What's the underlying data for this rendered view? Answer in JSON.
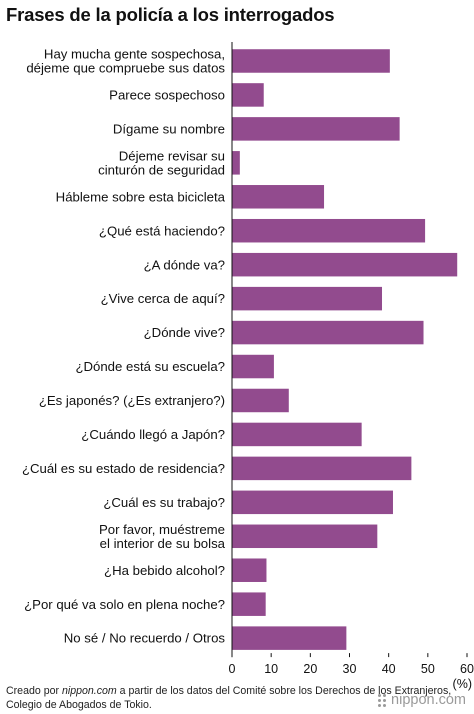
{
  "title": "Frases de la policía a los interrogados",
  "chart_data": {
    "type": "bar",
    "orientation": "horizontal",
    "categories": [
      [
        "Hay mucha gente sospechosa,",
        "déjeme que compruebe sus datos"
      ],
      [
        "Parece sospechoso"
      ],
      [
        "Dígame su nombre"
      ],
      [
        "Déjeme revisar su",
        "cinturón de seguridad"
      ],
      [
        "Hábleme sobre esta bicicleta"
      ],
      [
        "¿Qué está haciendo?"
      ],
      [
        "¿A dónde va?"
      ],
      [
        "¿Vive cerca de aquí?"
      ],
      [
        "¿Dónde vive?"
      ],
      [
        "¿Dónde está su escuela?"
      ],
      [
        "¿Es japonés? (¿Es extranjero?)"
      ],
      [
        "¿Cuándo llegó a Japón?"
      ],
      [
        "¿Cuál es su estado de residencia?"
      ],
      [
        "¿Cuál es su trabajo?"
      ],
      [
        "Por favor, muéstreme",
        "el interior de su bolsa"
      ],
      [
        "¿Ha bebido alcohol?"
      ],
      [
        "¿Por qué va solo en plena noche?"
      ],
      [
        "No sé / No recuerdo / Otros"
      ]
    ],
    "values": [
      40.3,
      8.1,
      42.8,
      2.0,
      23.5,
      49.3,
      57.5,
      38.3,
      48.9,
      10.7,
      14.5,
      33.1,
      45.8,
      41.1,
      37.1,
      8.8,
      8.6,
      29.2
    ],
    "xlim": [
      0,
      60
    ],
    "ticks": [
      "0",
      "10",
      "20",
      "30",
      "40",
      "50",
      "60"
    ],
    "unit": "(%)",
    "bar_color": "#924b8e"
  },
  "footer": {
    "prefix": "Creado por ",
    "source": "nippon.com",
    "text": " a partir de los datos del Comité sobre los Derechos de los Extranjeros, Colegio de Abogados de Tokio."
  },
  "brand": "nippon.com"
}
